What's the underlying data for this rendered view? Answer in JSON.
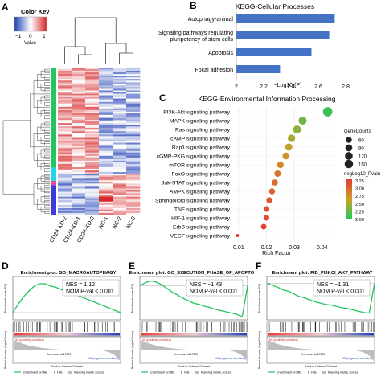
{
  "panels": {
    "A": "A",
    "B": "B",
    "C": "C",
    "D": "D",
    "E": "E",
    "F": "F"
  },
  "heatmap": {
    "color_key_title": "Color Key",
    "color_key_ticks": [
      "−1",
      "0",
      "1"
    ],
    "color_key_label": "Value",
    "colors": {
      "low": "#1f3fb5",
      "mid": "#ffffff",
      "high": "#d62728"
    },
    "samples": [
      "CD24-KD-2",
      "CD24-KD-1",
      "CD24-KD-3",
      "NC-1",
      "NC-2",
      "NC-3"
    ],
    "side_bar_colors": [
      "#22c55e",
      "#22d3ee",
      "#ec4899",
      "#3b3bd6"
    ]
  },
  "chart_data": [
    {
      "type": "bar",
      "title": "KEGG-Cellular Processes",
      "orientation": "horizontal",
      "categories": [
        "Autophagy-animal",
        "Signaling pathways regulating pluripotency of stem cells",
        "Apoptosis",
        "Focal adhesion"
      ],
      "category_lines": [
        [
          "Autophagy-animal"
        ],
        [
          "Signaling pathways regulating",
          "pluripotency of stem cells"
        ],
        [
          "Apoptosis"
        ],
        [
          "Focal adhesion"
        ]
      ],
      "values": [
        2.72,
        2.68,
        2.55,
        2.32
      ],
      "xlabel": "−Log10 (P)",
      "xlim": [
        2.0,
        2.8
      ],
      "xticks": [
        "2",
        "2.2",
        "2.4",
        "2.6",
        "2.8"
      ],
      "bar_color": "#4472c4"
    },
    {
      "type": "scatter",
      "title": "KEGG-Environmental Information Processing",
      "categories": [
        "PI3K-Akt signaling pathway",
        "MAPK signaling pathway",
        "Ras signaling pathway",
        "cAMP signaling pathway",
        "Rap1 signaling pathway",
        "cGMP-PKG signaling pathway",
        "mTOR signaling pathway",
        "FoxO signaling pathway",
        "Jak-STAT signaling pathway",
        "AMPK signaling pathway",
        "Sphingolipid signaling pathway",
        "TNF signaling pathway",
        "HIF-1 signaling pathway",
        "ErbB signaling pathway",
        "VEGF signaling pathway"
      ],
      "rich_factor": [
        0.042,
        0.033,
        0.031,
        0.029,
        0.028,
        0.027,
        0.025,
        0.024,
        0.023,
        0.022,
        0.021,
        0.02,
        0.02,
        0.019,
        0.0095
      ],
      "gene_counts": [
        150,
        100,
        95,
        80,
        75,
        70,
        60,
        55,
        50,
        45,
        42,
        40,
        38,
        35,
        5
      ],
      "neglog10_pvalue": [
        2.1,
        2.3,
        2.4,
        2.5,
        2.6,
        2.7,
        2.8,
        2.9,
        2.95,
        3.0,
        3.05,
        3.1,
        3.15,
        3.2,
        3.25
      ],
      "xlabel": "Rich Factor",
      "xlim": [
        0.008,
        0.045
      ],
      "xticks": [
        0.01,
        0.02,
        0.03,
        0.04
      ],
      "legend_size_title": "GeneCounts",
      "legend_size_values": [
        60,
        90,
        120,
        150
      ],
      "legend_color_title": "negLog10_Pvalu",
      "legend_color_ticks": [
        "3.25",
        "3.00",
        "2.75",
        "2.50",
        "2.25",
        "2.00"
      ],
      "color_scale": {
        "min": 2.0,
        "max": 3.25,
        "low_color": "#22c55e",
        "high_color": "#e53935"
      }
    },
    {
      "type": "line",
      "title": "Enrichment plot: GO_MACROAUTOPHAGY",
      "stat_lines": [
        "NES = 1.12",
        "NOM P-val < 0.001"
      ],
      "ylabel": "Enrichment score (ES)",
      "ylabel2": "Ranked list metric (Signal2Noise)",
      "xlabel": "Rank in Ordered Dataset",
      "x": [
        0,
        5,
        10,
        15,
        20,
        25,
        30,
        35,
        40,
        45,
        50,
        55,
        60,
        65,
        70,
        75,
        80,
        85,
        90,
        95,
        100
      ],
      "es": [
        0,
        0.12,
        0.22,
        0.3,
        0.37,
        0.4,
        0.4,
        0.37,
        0.35,
        0.32,
        0.3,
        0.27,
        0.24,
        0.21,
        0.18,
        0.15,
        0.12,
        0.09,
        0.06,
        0.03,
        0
      ],
      "ylim": [
        -0.1,
        0.5
      ],
      "legend": [
        "Enrichment profile",
        "Hits",
        "Ranking metric scores"
      ],
      "mid_label": "Zero cross at 17676",
      "group_labels": [
        "NC (positively correlated)",
        "KD (negatively correlated)"
      ],
      "colors": {
        "line": "#22c55e",
        "hits": "#111111"
      }
    },
    {
      "type": "line",
      "title": "Enrichment plot: GO_EXECUTION_PHASE_OF_APOPTOSIS",
      "stat_lines": [
        "NES = −1.43",
        "NOM P-val < 0.001"
      ],
      "ylabel": "Enrichment score (ES)",
      "ylabel2": "Ranked list metric (Signal2Noise)",
      "xlabel": "Rank in Ordered Dataset",
      "x": [
        0,
        5,
        10,
        15,
        20,
        25,
        30,
        35,
        40,
        45,
        50,
        55,
        60,
        65,
        70,
        75,
        80,
        85,
        90,
        95,
        100
      ],
      "es": [
        0,
        0.05,
        0.08,
        0.06,
        0.02,
        -0.04,
        -0.1,
        -0.15,
        -0.2,
        -0.24,
        -0.28,
        -0.3,
        -0.33,
        -0.35,
        -0.38,
        -0.4,
        -0.42,
        -0.44,
        -0.46,
        -0.5,
        0
      ],
      "ylim": [
        -0.55,
        0.15
      ],
      "legend": [
        "Enrichment profile",
        "Hits",
        "Ranking metric scores"
      ],
      "mid_label": "Zero cross at 17676",
      "group_labels": [
        "NC (positively correlated)",
        "KD (negatively correlated)"
      ],
      "colors": {
        "line": "#22c55e",
        "hits": "#111111"
      }
    },
    {
      "type": "line",
      "title": "Enrichment plot: PID_PI3KCI_AKT_PATHWAY",
      "stat_lines": [
        "NES = −1.31",
        "NOM P-val < 0.001"
      ],
      "ylabel": "Enrichment score (ES)",
      "ylabel2": "Ranked list metric (Signal2Noise)",
      "xlabel": "Rank in Ordered Dataset",
      "x": [
        0,
        5,
        10,
        15,
        20,
        25,
        30,
        35,
        40,
        45,
        50,
        55,
        60,
        65,
        70,
        75,
        80,
        85,
        90,
        95,
        100
      ],
      "es": [
        0,
        -0.03,
        -0.06,
        -0.1,
        -0.12,
        -0.16,
        -0.2,
        -0.22,
        -0.25,
        -0.28,
        -0.3,
        -0.32,
        -0.33,
        -0.35,
        -0.37,
        -0.38,
        -0.4,
        -0.42,
        -0.44,
        -0.45,
        0
      ],
      "ylim": [
        -0.55,
        0.1
      ],
      "legend": [
        "Enrichment profile",
        "Hits",
        "Ranking metric scores"
      ],
      "mid_label": "Zero cross at 17676",
      "group_labels": [
        "NC (positively correlated)",
        "KD (negatively correlated)"
      ],
      "colors": {
        "line": "#22c55e",
        "hits": "#111111"
      }
    }
  ]
}
